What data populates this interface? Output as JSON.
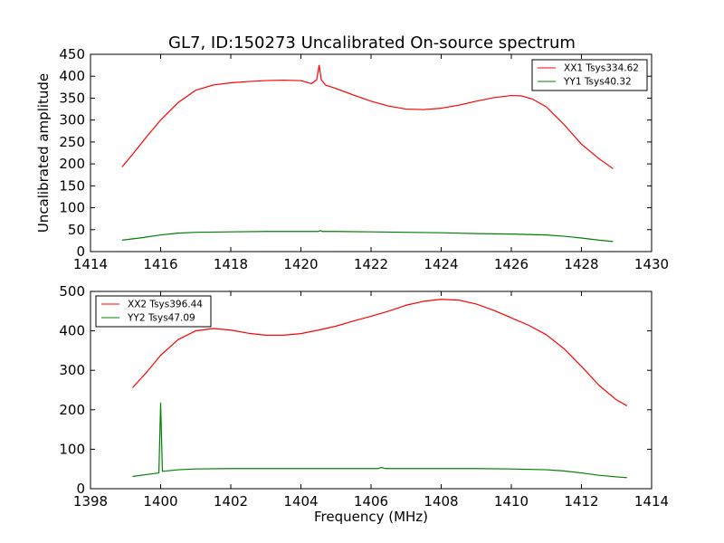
{
  "title": "GL7, ID:150273 Uncalibrated On-source spectrum",
  "colors": {
    "red": "#ff0000",
    "green": "#008000"
  },
  "chart_data": [
    {
      "type": "line",
      "xlabel": "",
      "ylabel": "Uncalibrated amplitude",
      "xlim": [
        1414,
        1430
      ],
      "ylim": [
        0,
        450
      ],
      "xticks": [
        "1414",
        "1416",
        "1418",
        "1420",
        "1422",
        "1424",
        "1426",
        "1428",
        "1430"
      ],
      "yticks": [
        "0",
        "50",
        "100",
        "150",
        "200",
        "250",
        "300",
        "350",
        "400",
        "450"
      ],
      "legend_position": "top-right",
      "series": [
        {
          "name": "XX1 Tsys334.62",
          "color": "#ff0000",
          "x": [
            1414.9,
            1415.2,
            1415.6,
            1416.0,
            1416.5,
            1417.0,
            1417.5,
            1418.0,
            1418.5,
            1419.0,
            1419.5,
            1420.0,
            1420.3,
            1420.45,
            1420.52,
            1420.58,
            1420.7,
            1421.0,
            1421.5,
            1422.0,
            1422.5,
            1423.0,
            1423.5,
            1424.0,
            1424.5,
            1425.0,
            1425.5,
            1426.0,
            1426.3,
            1426.6,
            1427.0,
            1427.5,
            1428.0,
            1428.5,
            1428.9
          ],
          "values": [
            193,
            222,
            262,
            300,
            340,
            368,
            380,
            385,
            388,
            390,
            391,
            390,
            383,
            392,
            425,
            392,
            380,
            372,
            357,
            343,
            332,
            325,
            324,
            327,
            334,
            343,
            351,
            356,
            355,
            348,
            330,
            290,
            245,
            212,
            189
          ]
        },
        {
          "name": "YY1 Tsys40.32",
          "color": "#008000",
          "x": [
            1414.9,
            1415.5,
            1416.0,
            1416.5,
            1417.0,
            1418.0,
            1419.0,
            1420.0,
            1420.5,
            1420.55,
            1420.6,
            1421.0,
            1422.0,
            1423.0,
            1424.0,
            1425.0,
            1426.0,
            1427.0,
            1427.5,
            1428.0,
            1428.5,
            1428.9
          ],
          "values": [
            26,
            32,
            38,
            42,
            44,
            45,
            46,
            46,
            46,
            48,
            46,
            46,
            45,
            44,
            43,
            41,
            40,
            38,
            35,
            31,
            26,
            23
          ]
        }
      ]
    },
    {
      "type": "line",
      "xlabel": "Frequency (MHz)",
      "ylabel": "",
      "xlim": [
        1398,
        1414
      ],
      "ylim": [
        0,
        500
      ],
      "xticks": [
        "1398",
        "1400",
        "1402",
        "1404",
        "1406",
        "1408",
        "1410",
        "1412",
        "1414"
      ],
      "yticks": [
        "0",
        "100",
        "200",
        "300",
        "400",
        "500"
      ],
      "legend_position": "top-left",
      "series": [
        {
          "name": "XX2 Tsys396.44",
          "color": "#ff0000",
          "x": [
            1399.2,
            1399.6,
            1400.0,
            1400.5,
            1401.0,
            1401.5,
            1402.0,
            1402.5,
            1403.0,
            1403.5,
            1404.0,
            1404.5,
            1405.0,
            1405.5,
            1406.0,
            1406.5,
            1407.0,
            1407.5,
            1408.0,
            1408.5,
            1409.0,
            1409.5,
            1410.0,
            1410.5,
            1411.0,
            1411.5,
            1412.0,
            1412.5,
            1413.0,
            1413.3
          ],
          "values": [
            256,
            295,
            338,
            378,
            400,
            406,
            402,
            394,
            389,
            389,
            393,
            402,
            412,
            425,
            437,
            450,
            465,
            475,
            480,
            478,
            468,
            452,
            433,
            414,
            390,
            355,
            310,
            262,
            225,
            210
          ]
        },
        {
          "name": "YY2 Tsys47.09",
          "color": "#008000",
          "x": [
            1399.2,
            1399.6,
            1399.95,
            1400.0,
            1400.05,
            1400.5,
            1401.0,
            1402.0,
            1403.0,
            1404.0,
            1405.0,
            1406.0,
            1406.2,
            1406.3,
            1406.4,
            1407.0,
            1408.0,
            1409.0,
            1410.0,
            1411.0,
            1411.5,
            1412.0,
            1412.5,
            1413.0,
            1413.3
          ],
          "values": [
            31,
            36,
            40,
            217,
            44,
            48,
            50,
            51,
            51,
            51,
            51,
            51,
            51,
            54,
            51,
            51,
            51,
            51,
            50,
            48,
            45,
            40,
            34,
            30,
            28
          ]
        }
      ]
    }
  ]
}
